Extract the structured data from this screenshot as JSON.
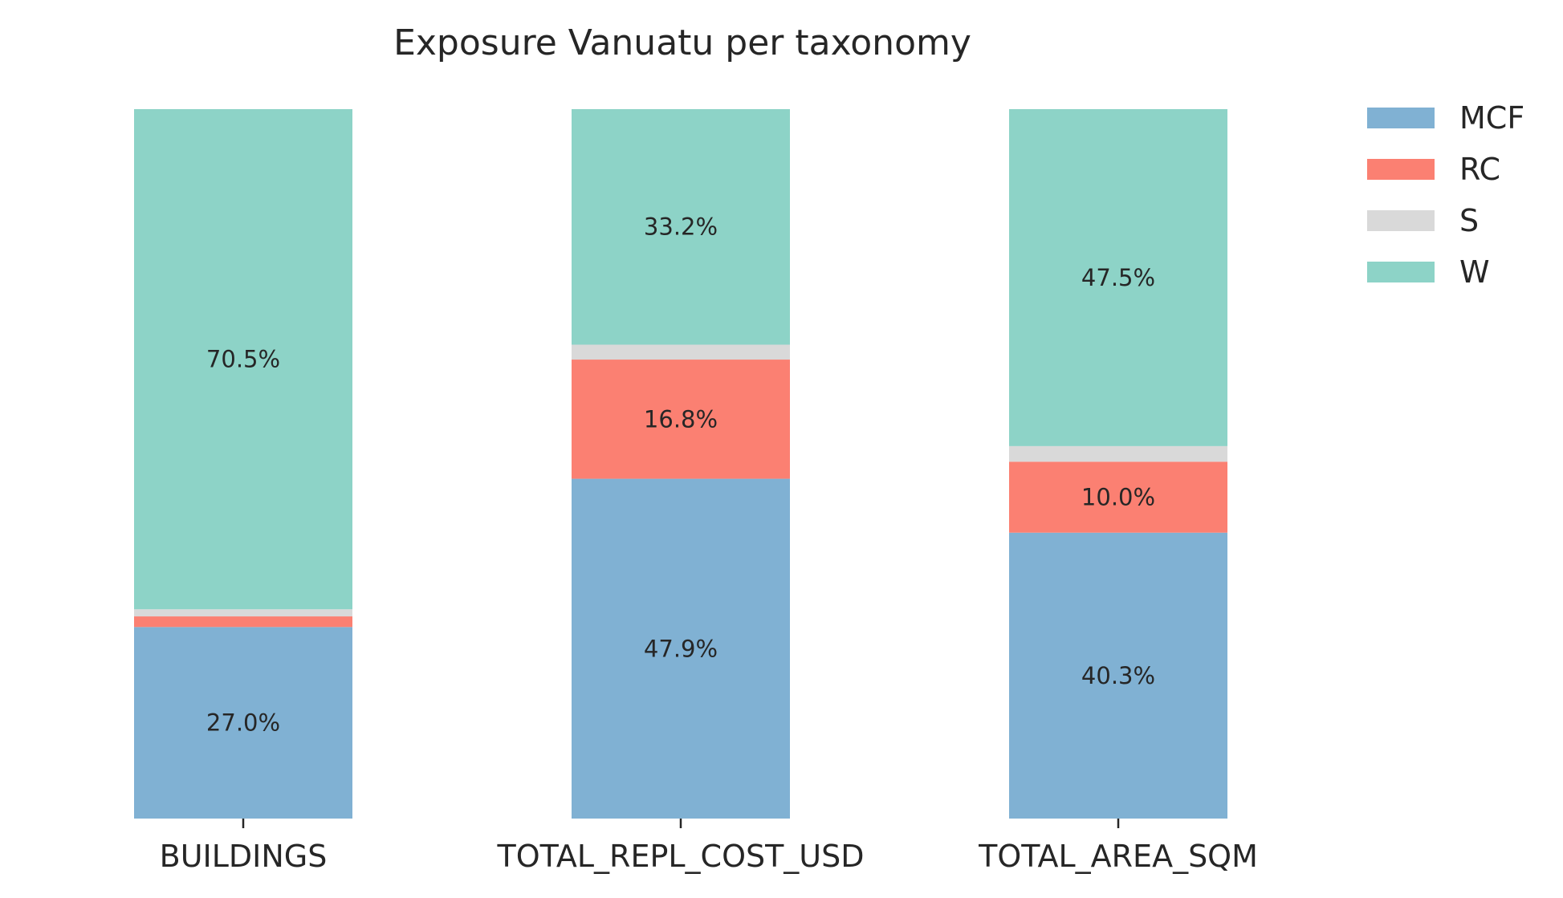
{
  "chart_data": {
    "type": "bar",
    "stacked": true,
    "title": "Exposure Vanuatu per taxonomy",
    "xlabel": "",
    "ylabel": "",
    "categories": [
      "BUILDINGS",
      "TOTAL_REPL_COST_USD",
      "TOTAL_AREA_SQM"
    ],
    "ylim": [
      0,
      100
    ],
    "grid": false,
    "legend_position": "top-right",
    "series": [
      {
        "name": "MCF",
        "color": "#80b1d3",
        "values": [
          27.0,
          47.9,
          40.3
        ],
        "labels": [
          "27.0%",
          "47.9%",
          "40.3%"
        ]
      },
      {
        "name": "RC",
        "color": "#fb8072",
        "values": [
          1.5,
          16.8,
          10.0
        ],
        "labels": [
          "",
          "16.8%",
          "10.0%"
        ]
      },
      {
        "name": "S",
        "color": "#d9d9d9",
        "values": [
          1.0,
          2.1,
          2.2
        ],
        "labels": [
          "",
          "",
          ""
        ]
      },
      {
        "name": "W",
        "color": "#8dd3c7",
        "values": [
          70.5,
          33.2,
          47.5
        ],
        "labels": [
          "70.5%",
          "33.2%",
          "47.5%"
        ]
      }
    ]
  }
}
